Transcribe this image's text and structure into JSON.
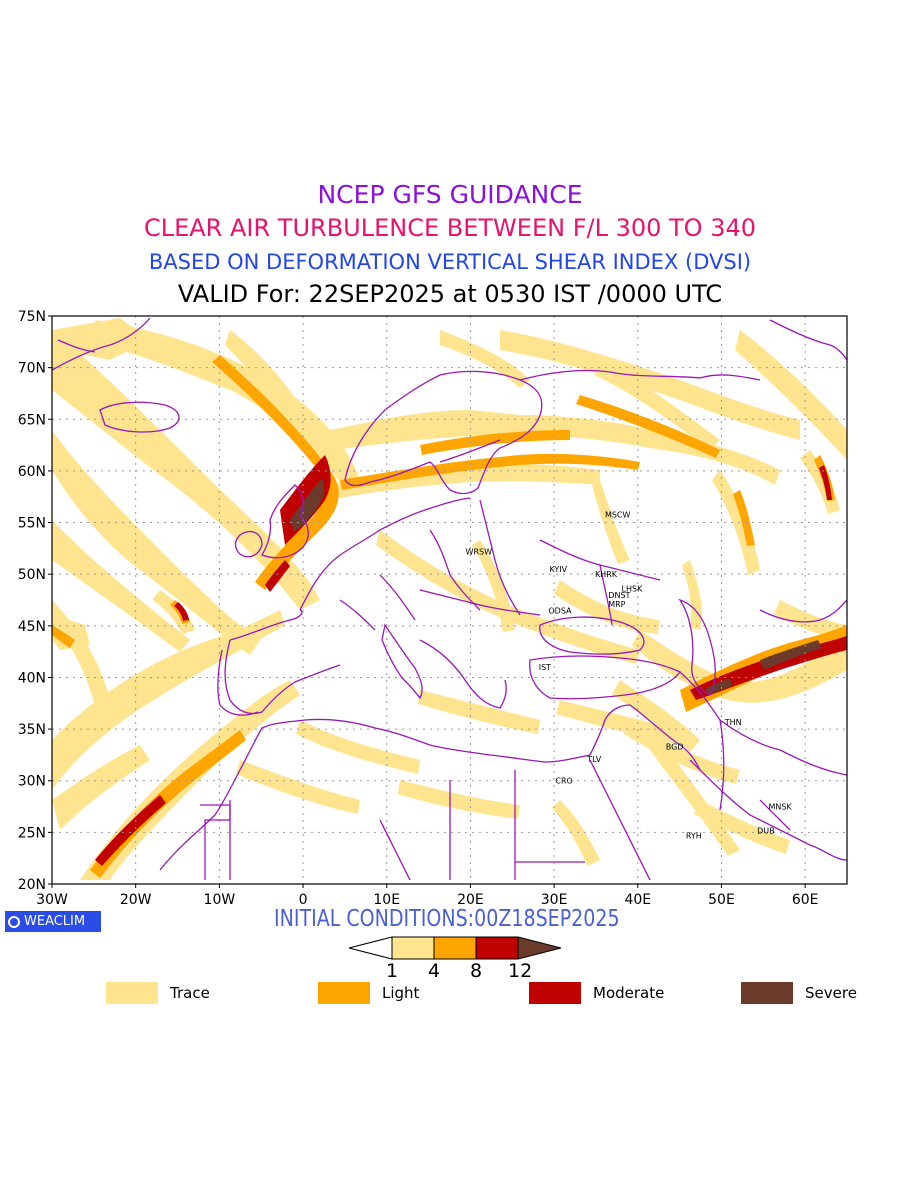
{
  "titles": {
    "line1": "NCEP GFS GUIDANCE",
    "line2": "CLEAR AIR TURBULENCE BETWEEN F/L 300 TO 340",
    "line3": "BASED ON DEFORMATION VERTICAL SHEAR INDEX (DVSI)",
    "line4": "VALID For: 22SEP2025 at 0530 IST /0000 UTC"
  },
  "colors": {
    "title1": "#8b10d8",
    "title2": "#e8126e",
    "title3": "#2346e6",
    "title4": "#000000",
    "initial": "#4a5fd6",
    "badge": "#2a4de8",
    "trace": "#fee48e",
    "light": "#fea500",
    "moderate": "#c00000",
    "severe": "#6b3a2a",
    "border": "#9a17b8",
    "grid": "#999999"
  },
  "lat_labels": [
    "75N",
    "70N",
    "65N",
    "60N",
    "55N",
    "50N",
    "45N",
    "40N",
    "35N",
    "30N",
    "25N",
    "20N"
  ],
  "lon_labels": [
    "30W",
    "20W",
    "10W",
    "0",
    "10E",
    "20E",
    "30E",
    "40E",
    "50E",
    "60E"
  ],
  "cities": [
    {
      "name": "MSCW",
      "lat": 55.8,
      "lon": 37.6
    },
    {
      "name": "WRSW",
      "lat": 52.2,
      "lon": 21.0
    },
    {
      "name": "KYIV",
      "lat": 50.5,
      "lon": 30.5
    },
    {
      "name": "KHRK",
      "lat": 50.0,
      "lon": 36.2
    },
    {
      "name": "LHSK",
      "lat": 48.6,
      "lon": 39.3
    },
    {
      "name": "DNST",
      "lat": 48.0,
      "lon": 37.8
    },
    {
      "name": "MRP",
      "lat": 47.1,
      "lon": 37.5
    },
    {
      "name": "ODSA",
      "lat": 46.5,
      "lon": 30.7
    },
    {
      "name": "IST",
      "lat": 41.0,
      "lon": 28.9
    },
    {
      "name": "THN",
      "lat": 35.7,
      "lon": 51.4
    },
    {
      "name": "BGD",
      "lat": 33.3,
      "lon": 44.4
    },
    {
      "name": "TLV",
      "lat": 32.1,
      "lon": 34.8
    },
    {
      "name": "CRO",
      "lat": 30.0,
      "lon": 31.2
    },
    {
      "name": "MNSK",
      "lat": 27.5,
      "lon": 57.0
    },
    {
      "name": "DUB",
      "lat": 25.2,
      "lon": 55.3
    },
    {
      "name": "RYH",
      "lat": 24.7,
      "lon": 46.7
    }
  ],
  "badge_label": "WEACLIM",
  "badge_icon": "copyright-circle-icon",
  "initial_conditions": "INITIAL CONDITIONS:00Z18SEP2025",
  "colorbar": {
    "ticks": [
      "1",
      "4",
      "8",
      "12"
    ]
  },
  "legend": [
    {
      "label": "Trace",
      "color_key": "trace"
    },
    {
      "label": "Light",
      "color_key": "light"
    },
    {
      "label": "Moderate",
      "color_key": "moderate"
    },
    {
      "label": "Severe",
      "color_key": "severe"
    }
  ]
}
